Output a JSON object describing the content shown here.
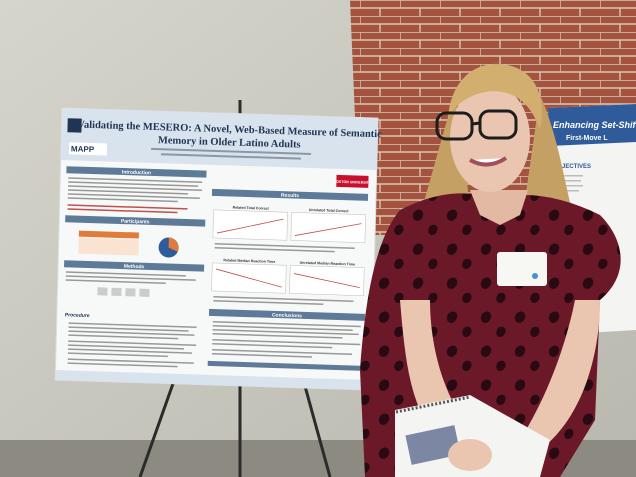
{
  "poster": {
    "title_line1": "Validating the MESERO: A Novel, Web-Based Measure of Semantic",
    "title_line2": "Memory in Older Latino Adults",
    "logo": "MAPP",
    "university": "BOSTON UNIVERSITY",
    "sections": {
      "introduction": "Introduction",
      "participants": "Participants",
      "methods": "Methods",
      "procedure": "Procedure",
      "results": "Results",
      "conclusions": "Conclusions"
    },
    "plots": [
      "Related Total Correct",
      "Unrelated Total Correct",
      "Related Median Reaction Time",
      "Unrelated Median Reaction Time"
    ]
  },
  "right_poster": {
    "title": "Enhancing Set-Shifting",
    "subtitle": "First-Move L",
    "section": "OBJECTIVES"
  }
}
